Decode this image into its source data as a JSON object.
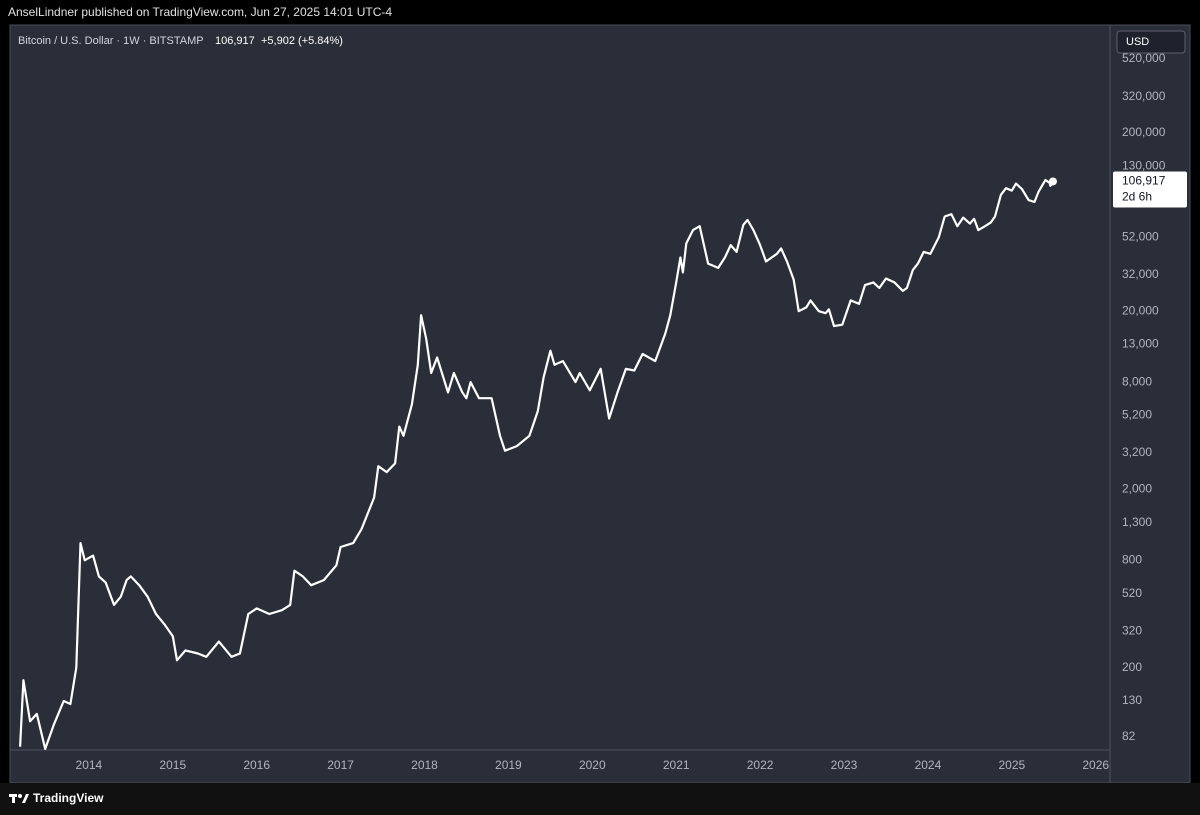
{
  "chart_data": {
    "type": "line",
    "publisher_line": "AnselLindner published on TradingView.com, Jun 27, 2025 14:01 UTC-4",
    "title": "Bitcoin / U.S. Dollar · 1W · BITSTAMP",
    "last_price": "106,917",
    "change": "+5,902 (+5.84%)",
    "currency": "USD",
    "countdown": "2d 6h",
    "brand": "TradingView",
    "color": "#ffffff",
    "log_scale": true,
    "grid": false,
    "xlim": [
      2013.06,
      2026.17
    ],
    "xticks": [
      2014,
      2015,
      2016,
      2017,
      2018,
      2019,
      2020,
      2021,
      2022,
      2023,
      2024,
      2025,
      2026
    ],
    "ylim": [
      69,
      807000
    ],
    "yticks": [
      {
        "value": 520000,
        "label": "520,000"
      },
      {
        "value": 320000,
        "label": "320,000"
      },
      {
        "value": 200000,
        "label": "200,000"
      },
      {
        "value": 130000,
        "label": "130,000"
      },
      {
        "value": 52000,
        "label": "52,000"
      },
      {
        "value": 32000,
        "label": "32,000"
      },
      {
        "value": 20000,
        "label": "20,000"
      },
      {
        "value": 13000,
        "label": "13,000"
      },
      {
        "value": 8000,
        "label": "8,000"
      },
      {
        "value": 5200,
        "label": "5,200"
      },
      {
        "value": 3200,
        "label": "3,200"
      },
      {
        "value": 2000,
        "label": "2,000"
      },
      {
        "value": 1300,
        "label": "1,300"
      },
      800,
      520,
      320,
      200,
      130,
      82
    ],
    "x": [
      2013.18,
      2013.22,
      2013.3,
      2013.38,
      2013.48,
      2013.58,
      2013.7,
      2013.78,
      2013.85,
      2013.9,
      2013.95,
      2014.05,
      2014.12,
      2014.2,
      2014.3,
      2014.38,
      2014.45,
      2014.5,
      2014.6,
      2014.7,
      2014.8,
      2014.9,
      2015.0,
      2015.05,
      2015.15,
      2015.3,
      2015.4,
      2015.55,
      2015.7,
      2015.8,
      2015.9,
      2016.0,
      2016.15,
      2016.3,
      2016.4,
      2016.45,
      2016.55,
      2016.65,
      2016.8,
      2016.95,
      2017.0,
      2017.15,
      2017.25,
      2017.4,
      2017.45,
      2017.55,
      2017.65,
      2017.7,
      2017.75,
      2017.85,
      2017.92,
      2017.96,
      2018.02,
      2018.08,
      2018.15,
      2018.28,
      2018.35,
      2018.45,
      2018.5,
      2018.55,
      2018.65,
      2018.8,
      2018.9,
      2018.96,
      2019.1,
      2019.25,
      2019.35,
      2019.42,
      2019.5,
      2019.55,
      2019.65,
      2019.8,
      2019.85,
      2019.97,
      2020.1,
      2020.2,
      2020.3,
      2020.4,
      2020.5,
      2020.6,
      2020.75,
      2020.87,
      2020.93,
      2021.0,
      2021.05,
      2021.08,
      2021.12,
      2021.2,
      2021.28,
      2021.38,
      2021.5,
      2021.58,
      2021.65,
      2021.72,
      2021.8,
      2021.85,
      2021.92,
      2022.0,
      2022.07,
      2022.2,
      2022.25,
      2022.32,
      2022.4,
      2022.46,
      2022.55,
      2022.6,
      2022.7,
      2022.78,
      2022.82,
      2022.88,
      2022.98,
      2023.08,
      2023.18,
      2023.25,
      2023.35,
      2023.42,
      2023.5,
      2023.6,
      2023.7,
      2023.75,
      2023.82,
      2023.88,
      2023.95,
      2024.03,
      2024.13,
      2024.2,
      2024.28,
      2024.35,
      2024.42,
      2024.5,
      2024.55,
      2024.6,
      2024.68,
      2024.75,
      2024.8,
      2024.87,
      2024.93,
      2025.0,
      2025.05,
      2025.12,
      2025.2,
      2025.27,
      2025.32,
      2025.37,
      2025.4,
      2025.45,
      2025.46,
      2025.49
    ],
    "values": [
      72,
      170,
      100,
      110,
      70,
      95,
      130,
      125,
      200,
      1000,
      800,
      850,
      650,
      600,
      450,
      500,
      620,
      650,
      580,
      500,
      400,
      350,
      300,
      220,
      250,
      240,
      230,
      280,
      230,
      240,
      400,
      430,
      400,
      420,
      450,
      700,
      650,
      580,
      620,
      750,
      950,
      1000,
      1200,
      1800,
      2700,
      2500,
      2800,
      4500,
      4000,
      6000,
      10000,
      19000,
      14000,
      9000,
      11000,
      7000,
      9000,
      7000,
      6500,
      8000,
      6500,
      6500,
      4000,
      3300,
      3500,
      4000,
      5500,
      8500,
      12000,
      10000,
      10500,
      8000,
      9000,
      7200,
      9500,
      5000,
      7000,
      9500,
      9300,
      11500,
      10500,
      15000,
      19000,
      29000,
      40000,
      33000,
      48000,
      57000,
      60000,
      37000,
      35000,
      40000,
      47000,
      43000,
      61000,
      65000,
      57000,
      47000,
      38000,
      42000,
      45000,
      38000,
      30000,
      20000,
      21000,
      23000,
      20000,
      19500,
      20500,
      16500,
      16800,
      23000,
      22000,
      28000,
      29000,
      27000,
      30500,
      29000,
      26000,
      27000,
      34000,
      37000,
      43000,
      42000,
      52000,
      68000,
      70000,
      60000,
      67000,
      62000,
      66000,
      57000,
      60000,
      63000,
      68000,
      90000,
      98000,
      95000,
      104000,
      97000,
      84000,
      82000,
      94000,
      103000,
      109000,
      105000,
      101000,
      106917
    ]
  }
}
